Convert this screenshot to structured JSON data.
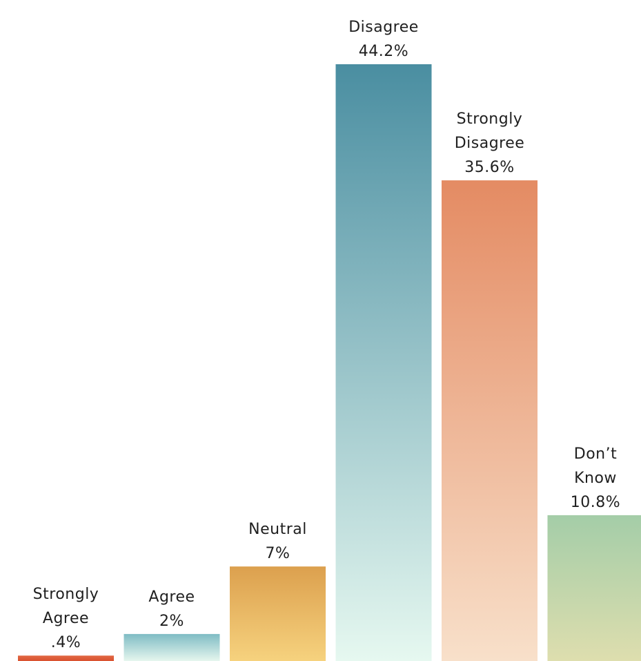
{
  "chart_data": {
    "type": "bar",
    "categories": [
      "Strongly Agree",
      "Agree",
      "Neutral",
      "Disagree",
      "Strongly Disagree",
      "Don’t Know"
    ],
    "values": [
      0.4,
      2,
      7,
      44.2,
      35.6,
      10.8
    ],
    "value_labels": [
      ".4%",
      "2%",
      "7%",
      "44.2%",
      "35.6%",
      "10.8%"
    ],
    "label_lines": [
      [
        "Strongly",
        "Agree"
      ],
      [
        "Agree"
      ],
      [
        "Neutral"
      ],
      [
        "Disagree"
      ],
      [
        "Strongly",
        "Disagree"
      ],
      [
        "Don’t",
        "Know"
      ]
    ],
    "unit": "%",
    "title": "",
    "xlabel": "",
    "ylabel": "",
    "ylim": [
      0,
      44.2
    ],
    "grid": false,
    "legend": "none",
    "colors": [
      {
        "top": "#e26a45",
        "bottom": "#d9502f"
      },
      {
        "top": "#7fbcc4",
        "bottom": "#e6f6ee"
      },
      {
        "top": "#dca04e",
        "bottom": "#f6d27e"
      },
      {
        "top": "#4a8ea1",
        "bottom": "#e6f8f0"
      },
      {
        "top": "#e48b63",
        "bottom": "#f8e0ca"
      },
      {
        "top": "#a4cda8",
        "bottom": "#dedeae"
      }
    ]
  }
}
